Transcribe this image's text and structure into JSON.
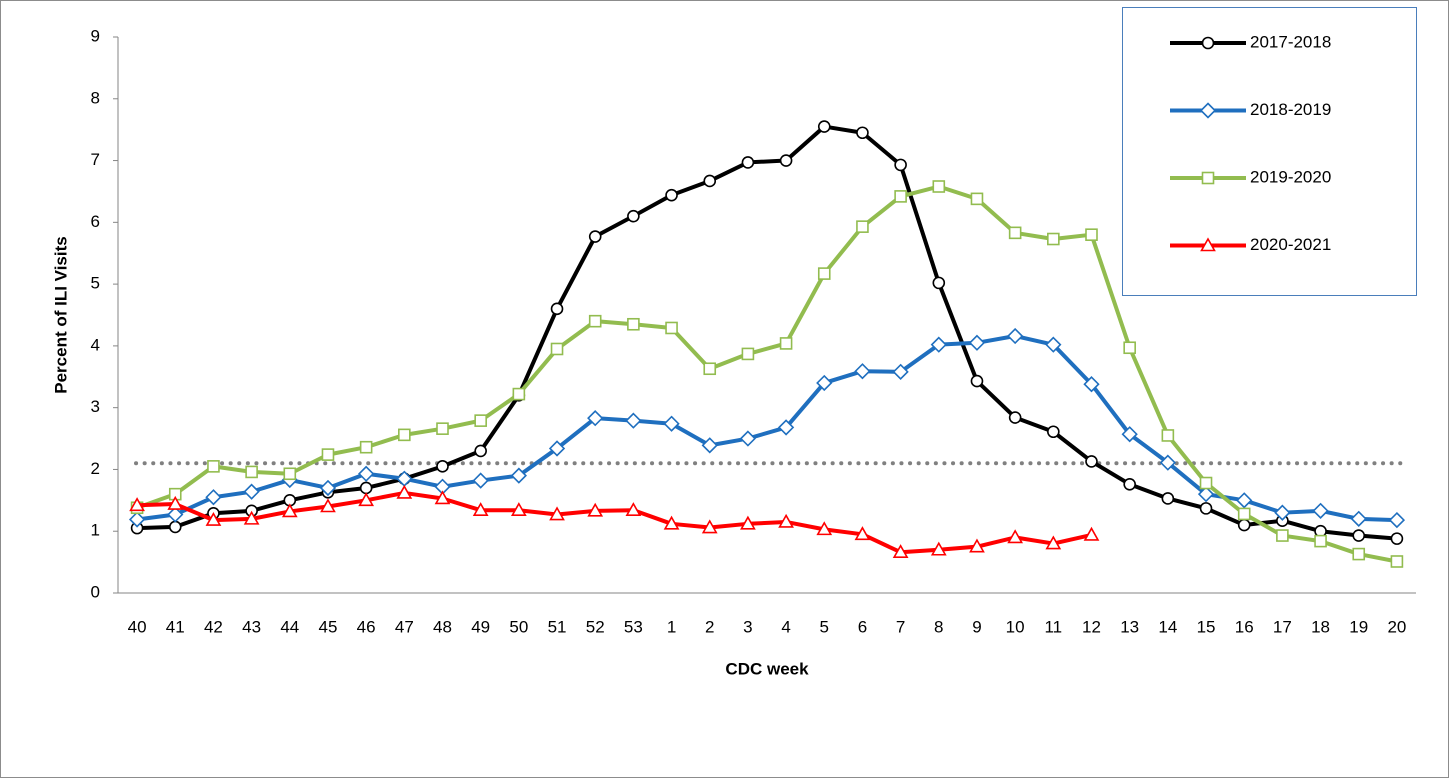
{
  "chart_data": {
    "type": "line",
    "x_label": "CDC week",
    "y_label": "Percent of ILI Visits",
    "categories": [
      "40",
      "41",
      "42",
      "43",
      "44",
      "45",
      "46",
      "47",
      "48",
      "49",
      "50",
      "51",
      "52",
      "53",
      "1",
      "2",
      "3",
      "4",
      "5",
      "6",
      "7",
      "8",
      "9",
      "10",
      "11",
      "12",
      "13",
      "14",
      "15",
      "16",
      "17",
      "18",
      "19",
      "20"
    ],
    "ylim": [
      0,
      9
    ],
    "yticks": [
      0,
      1,
      2,
      3,
      4,
      5,
      6,
      7,
      8,
      9
    ],
    "reference_line": {
      "value": 2.1,
      "color": "#808080"
    },
    "series": [
      {
        "name": "2017-2018",
        "color": "#000000",
        "marker": "circle",
        "values": [
          1.05,
          1.07,
          1.29,
          1.33,
          1.5,
          1.63,
          1.7,
          1.85,
          2.05,
          2.3,
          3.2,
          4.6,
          5.77,
          6.1,
          6.44,
          6.67,
          6.97,
          7.0,
          7.55,
          7.45,
          6.93,
          5.02,
          3.43,
          2.84,
          2.61,
          2.13,
          1.76,
          1.53,
          1.37,
          1.1,
          1.17,
          1.0,
          0.93,
          0.88
        ]
      },
      {
        "name": "2018-2019",
        "color": "#1f6fbf",
        "marker": "diamond",
        "values": [
          1.19,
          1.27,
          1.55,
          1.64,
          1.83,
          1.7,
          1.93,
          1.85,
          1.72,
          1.82,
          1.9,
          2.34,
          2.83,
          2.79,
          2.74,
          2.39,
          2.5,
          2.68,
          3.4,
          3.59,
          3.58,
          4.02,
          4.05,
          4.16,
          4.02,
          3.38,
          2.57,
          2.11,
          1.6,
          1.5,
          1.3,
          1.33,
          1.2,
          1.18
        ]
      },
      {
        "name": "2019-2020",
        "color": "#92bc4f",
        "marker": "square",
        "values": [
          1.38,
          1.6,
          2.05,
          1.96,
          1.93,
          2.24,
          2.36,
          2.56,
          2.66,
          2.79,
          3.22,
          3.95,
          4.4,
          4.35,
          4.29,
          3.63,
          3.87,
          4.04,
          5.17,
          5.93,
          6.42,
          6.58,
          6.38,
          5.83,
          5.73,
          5.8,
          3.97,
          2.55,
          1.78,
          1.28,
          0.93,
          0.84,
          0.63,
          0.51
        ]
      },
      {
        "name": "2020-2021",
        "color": "#ff0000",
        "marker": "triangle",
        "values": [
          1.42,
          1.44,
          1.18,
          1.2,
          1.32,
          1.4,
          1.5,
          1.62,
          1.53,
          1.34,
          1.34,
          1.27,
          1.33,
          1.34,
          1.12,
          1.06,
          1.12,
          1.15,
          1.03,
          0.95,
          0.66,
          0.7,
          0.75,
          0.9,
          0.8,
          0.94,
          null,
          null,
          null,
          null,
          null,
          null,
          null,
          null
        ]
      }
    ]
  }
}
